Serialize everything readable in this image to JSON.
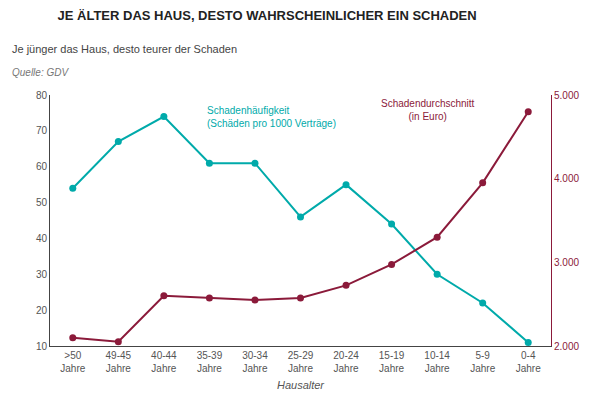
{
  "chart_data": {
    "type": "line",
    "title": "JE ÄLTER DAS HAUS, DESTO WAHRSCHEINLICHER EIN SCHADEN",
    "subtitle": "Je jünger das Haus, desto teurer der Schaden",
    "source": "Quelle: GDV",
    "xlabel": "Hausalter",
    "categories": [
      ">50\nJahre",
      "49-45\nJahre",
      "40-44\nJahre",
      "35-39\nJahre",
      "30-34\nJahre",
      "25-29\nJahre",
      "20-24\nJahre",
      "15-19\nJahre",
      "10-14\nJahre",
      "5-9\nJahre",
      "0-4\nJahre"
    ],
    "series": [
      {
        "name": "Schadenhäufigkeit\n(Schäden pro 1000 Verträge)",
        "color": "#00AAAA",
        "marker": "circle",
        "values": [
          54,
          67,
          74,
          61,
          61,
          46,
          55,
          44,
          30,
          22,
          11
        ]
      },
      {
        "name": "Schadendurchschnitt\n(in Euro)",
        "color": "#8B1A3A",
        "marker": "circle",
        "axis": "y2",
        "values": [
          2100,
          2050,
          2600,
          2575,
          2550,
          2575,
          2725,
          2975,
          3300,
          3950,
          4800
        ]
      }
    ],
    "ylim": [
      10,
      80
    ],
    "yticks": [
      10,
      20,
      30,
      40,
      50,
      60,
      70,
      80
    ],
    "y2lim": [
      2000,
      5000
    ],
    "y2ticks": [
      {
        "value": 2000,
        "label": "2.000"
      },
      {
        "value": 3000,
        "label": "3.000"
      },
      {
        "value": 4000,
        "label": "4.000"
      },
      {
        "value": 5000,
        "label": "5.000"
      }
    ],
    "grid": false
  }
}
